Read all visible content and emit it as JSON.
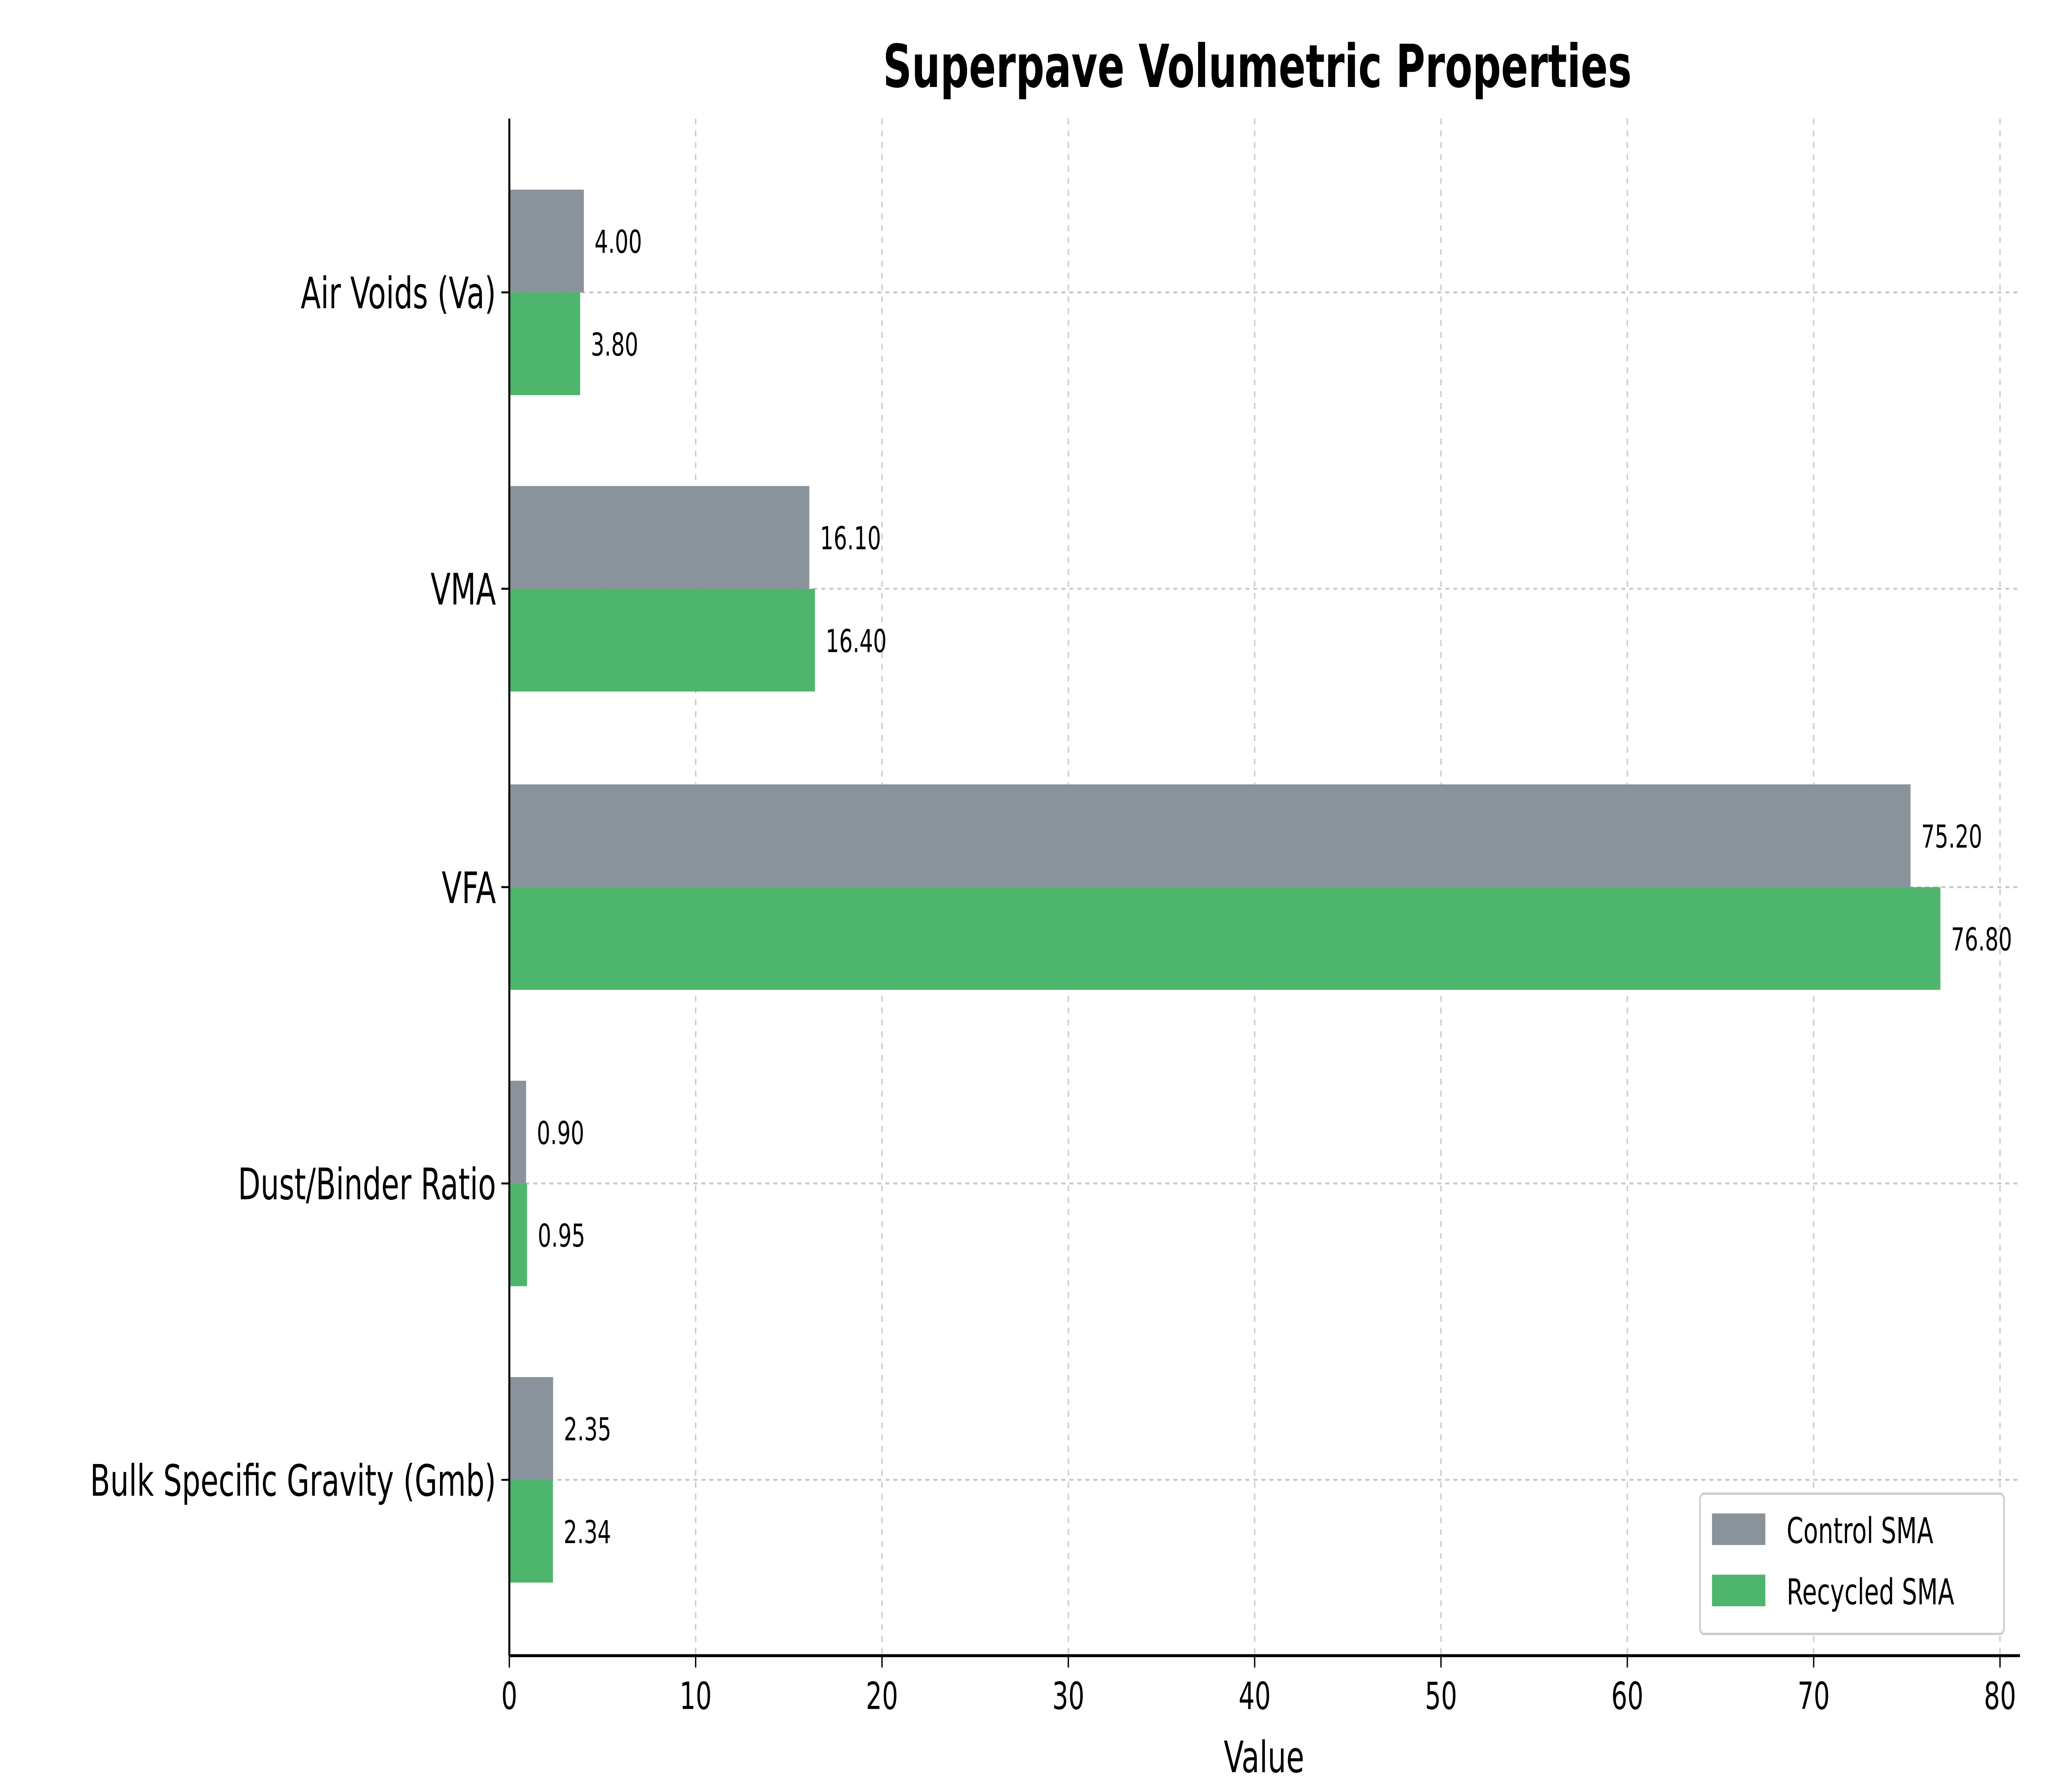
{
  "chart_data": {
    "type": "bar",
    "orientation": "horizontal",
    "title": "Superpave Volumetric Properties",
    "xlabel": "Value",
    "ylabel": "",
    "xlim": [
      0,
      81
    ],
    "xticks": [
      0,
      10,
      20,
      30,
      40,
      50,
      60,
      70,
      80
    ],
    "grid": true,
    "legend_position": "lower-right",
    "categories": [
      "Air Voids (Va)",
      "VMA",
      "VFA",
      "Dust/Binder Ratio",
      "Bulk Specific Gravity (Gmb)"
    ],
    "series": [
      {
        "name": "Control SMA",
        "color": "#8a939b",
        "values": [
          4.0,
          16.1,
          75.2,
          0.9,
          2.35
        ],
        "labels": [
          "4.00",
          "16.10",
          "75.20",
          "0.90",
          "2.35"
        ]
      },
      {
        "name": "Recycled SMA",
        "color": "#4db66c",
        "values": [
          3.8,
          16.4,
          76.8,
          0.95,
          2.34
        ],
        "labels": [
          "3.80",
          "16.40",
          "76.80",
          "0.95",
          "2.34"
        ]
      }
    ]
  }
}
